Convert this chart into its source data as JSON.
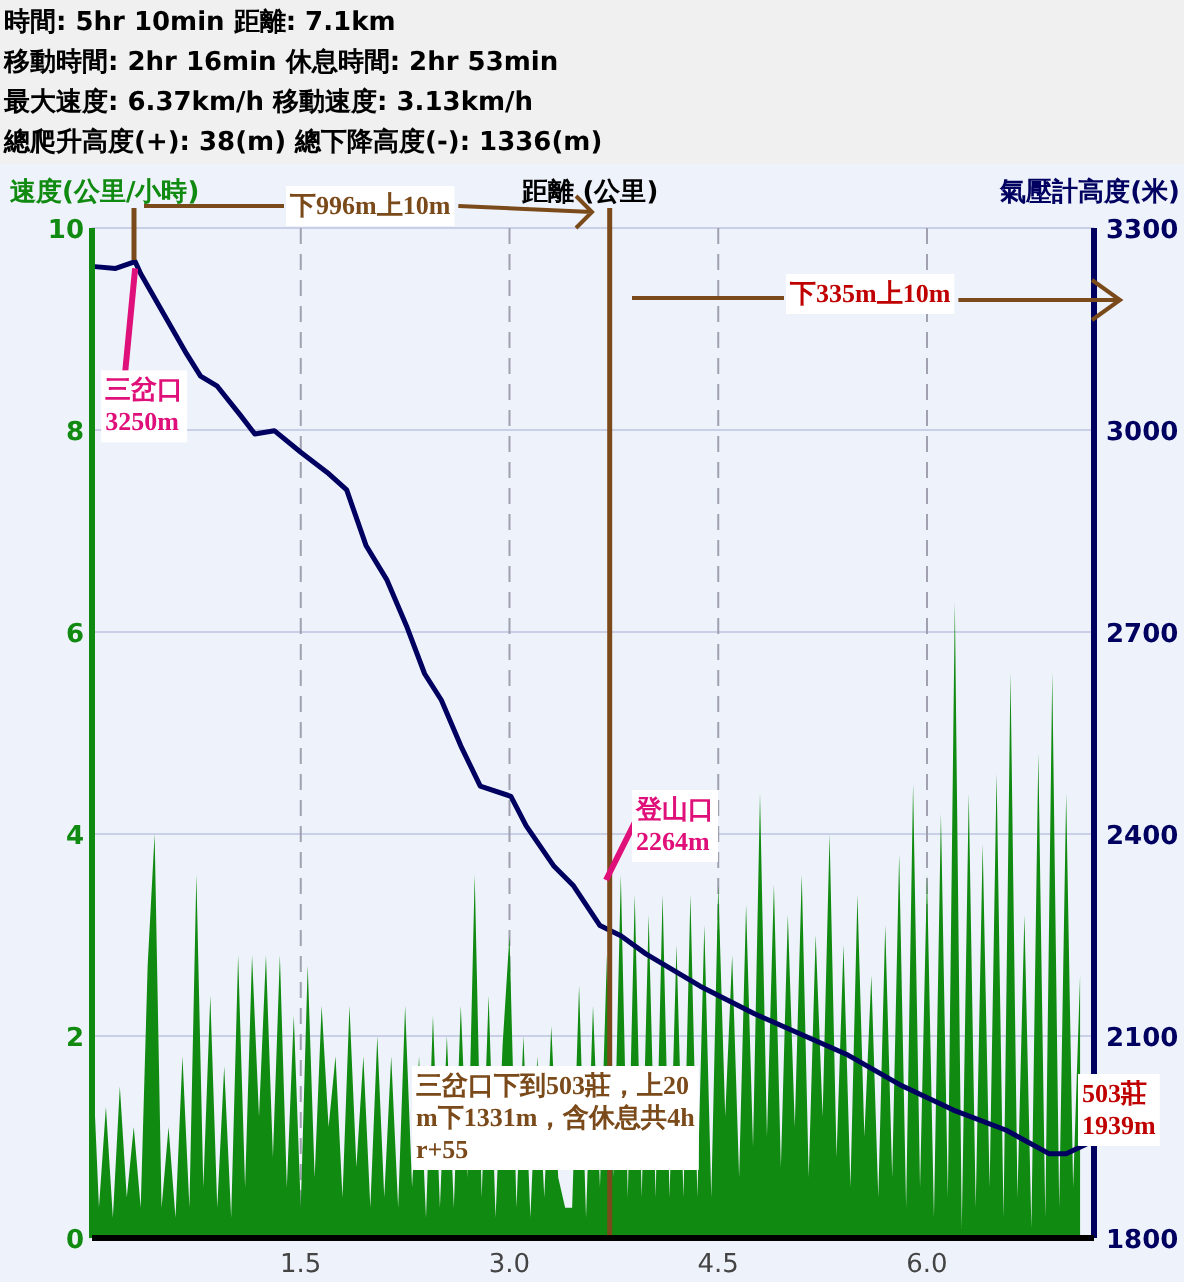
{
  "chart_data": {
    "type": "line",
    "title": "時間: 5hr 10min   距離: 7.1km",
    "subtitle": "移動時間: 2hr 16min  休息時間: 2hr 53min\n最大速度: 6.37km/h  移動速度: 3.13km/h\n總爬升高度(+): 38(m)  總下降高度(-): 1336(m)",
    "xlabel": "距離 (公里)",
    "ylabel": "速度(公里/小時)",
    "y2label": "氣壓計高度(米)",
    "xlim": [
      0,
      7.2
    ],
    "xticks": [
      1.5,
      {
        "value": 3,
        "label": "3.0"
      },
      4.5,
      {
        "value": 6,
        "label": "6.0"
      }
    ],
    "ylim": [
      0,
      10
    ],
    "yticks": [
      0,
      2,
      4,
      6,
      8,
      10
    ],
    "y2lim": [
      1800,
      3300
    ],
    "y2ticks": [
      1800,
      2100,
      2400,
      2700,
      3000,
      3300
    ],
    "grid": true,
    "series": [
      {
        "type": "area",
        "color": "#108a10",
        "x": [
          0,
          0.05,
          0.1,
          0.15,
          0.2,
          0.25,
          0.3,
          0.35,
          0.4,
          0.45,
          0.5,
          0.55,
          0.6,
          0.65,
          0.7,
          0.75,
          0.8,
          0.85,
          0.9,
          0.95,
          1,
          1.05,
          1.1,
          1.15,
          1.2,
          1.25,
          1.3,
          1.35,
          1.4,
          1.45,
          1.5,
          1.55,
          1.6,
          1.65,
          1.7,
          1.75,
          1.8,
          1.85,
          1.9,
          1.95,
          2,
          2.05,
          2.1,
          2.15,
          2.2,
          2.25,
          2.3,
          2.35,
          2.4,
          2.45,
          2.5,
          2.55,
          2.6,
          2.65,
          2.7,
          2.75,
          2.8,
          2.85,
          2.9,
          2.95,
          3,
          3.05,
          3.1,
          3.15,
          3.2,
          3.25,
          3.3,
          3.35,
          3.4,
          3.45,
          3.5,
          3.55,
          3.6,
          3.65,
          3.7,
          3.75,
          3.8,
          3.85,
          3.9,
          3.95,
          4,
          4.05,
          4.1,
          4.15,
          4.2,
          4.25,
          4.3,
          4.35,
          4.4,
          4.45,
          4.5,
          4.55,
          4.6,
          4.65,
          4.7,
          4.75,
          4.8,
          4.85,
          4.9,
          4.95,
          5,
          5.05,
          5.1,
          5.15,
          5.2,
          5.25,
          5.3,
          5.35,
          5.4,
          5.45,
          5.5,
          5.55,
          5.6,
          5.65,
          5.7,
          5.75,
          5.8,
          5.85,
          5.9,
          5.95,
          6,
          6.05,
          6.1,
          6.15,
          6.2,
          6.25,
          6.3,
          6.35,
          6.4,
          6.45,
          6.5,
          6.55,
          6.6,
          6.65,
          6.7,
          6.75,
          6.8,
          6.85,
          6.9,
          6.95,
          7,
          7.05,
          7.1
        ],
        "values": [
          1.9,
          0.3,
          1.3,
          0.2,
          1.5,
          0.4,
          1.1,
          0.3,
          2.7,
          4.0,
          0.3,
          1.1,
          0.2,
          1.8,
          0.3,
          3.6,
          0.5,
          2.4,
          0.3,
          1.7,
          0.2,
          2.8,
          0.5,
          2.8,
          1.2,
          2.8,
          0.8,
          2.8,
          0.5,
          2.2,
          0.3,
          2.7,
          0.6,
          2.3,
          1.1,
          1.8,
          0.4,
          2.3,
          0.7,
          1.8,
          0.3,
          2.0,
          0.4,
          1.8,
          0.3,
          2.3,
          0.5,
          1.8,
          0.2,
          2.2,
          0.3,
          2.0,
          0.3,
          2.3,
          0.6,
          3.6,
          0.4,
          2.4,
          0.2,
          1.9,
          3.0,
          0.3,
          2.0,
          0.2,
          1.8,
          0.4,
          2.1,
          0.6,
          0.3,
          0.3,
          2.5,
          0.2,
          2.3,
          0.5,
          2.8,
          0.6,
          3.6,
          0.4,
          3.4,
          0.4,
          3.2,
          0.4,
          3.4,
          0.4,
          2.9,
          0.4,
          3.4,
          0.4,
          3.1,
          0.4,
          3.5,
          1.2,
          2.8,
          0.6,
          3.3,
          0.9,
          4.4,
          1.0,
          3.5,
          0.7,
          3.2,
          1.1,
          3.6,
          0.6,
          3.0,
          1.2,
          4.0,
          0.8,
          2.9,
          0.5,
          3.4,
          1.0,
          2.6,
          0.4,
          3.1,
          0.6,
          3.8,
          0.3,
          4.5,
          0.5,
          3.6,
          0.2,
          4.2,
          0.4,
          6.3,
          0.1,
          4.4,
          0.3,
          3.9,
          0.5,
          4.6,
          0.2,
          5.6,
          0.4,
          3.2,
          0.1,
          4.8,
          0.2,
          5.6,
          0.3,
          4.4,
          0.5,
          2.6
        ]
      },
      {
        "axis": "y2",
        "color": "#000060",
        "x": [
          0,
          0.17,
          0.31,
          0.35,
          0.5,
          0.68,
          0.78,
          0.9,
          1.07,
          1.17,
          1.31,
          1.5,
          1.69,
          1.83,
          1.97,
          2.12,
          2.26,
          2.39,
          2.51,
          2.65,
          2.79,
          3.01,
          3.12,
          3.32,
          3.46,
          3.65,
          3.8,
          3.98,
          4.37,
          4.76,
          5.09,
          5.42,
          5.82,
          6.19,
          6.57,
          6.88,
          7,
          7.14
        ],
        "values": [
          3243,
          3240,
          3250,
          3232,
          3178,
          3113,
          3080,
          3065,
          3021,
          2994,
          2999,
          2967,
          2937,
          2911,
          2828,
          2777,
          2709,
          2638,
          2599,
          2531,
          2471,
          2456,
          2412,
          2352,
          2323,
          2264,
          2249,
          2222,
          2174,
          2133,
          2103,
          2073,
          2026,
          1990,
          1960,
          1925,
          1925,
          1939
        ]
      }
    ],
    "ref_lines": [
      {
        "axis": "x",
        "value": 3.72,
        "color": "#7a4a1a"
      }
    ],
    "annotations": [
      {
        "text": "三岔口\n3250m",
        "x": 0.31,
        "y": 9.64
      },
      "登山口\n2264m",
      "503莊\n1939m",
      "下996m上10m",
      "下335m上10m",
      "三岔口下到503莊，上20m下1331m，含休息共4hr+55"
    ]
  }
}
